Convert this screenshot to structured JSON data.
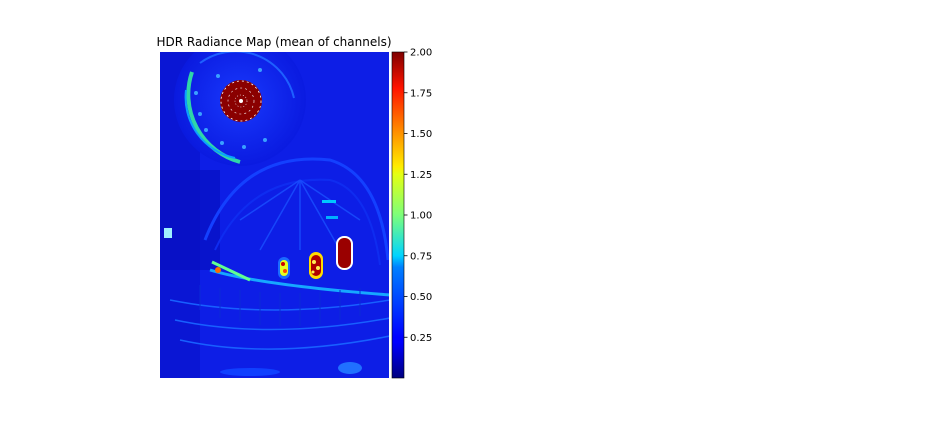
{
  "figure": {
    "title": "HDR Radiance Map (mean of channels)",
    "colormap": "jet",
    "image_content": "interior of a domed church rendered as a false-colour radiance map",
    "colorbar": {
      "vmin": 0.0,
      "vmax": 2.0,
      "tick_labels": [
        "2.00",
        "1.75",
        "1.50",
        "1.25",
        "1.00",
        "0.75",
        "0.50",
        "0.25"
      ],
      "tick_values": [
        2.0,
        1.75,
        1.5,
        1.25,
        1.0,
        0.75,
        0.5,
        0.25
      ]
    }
  }
}
